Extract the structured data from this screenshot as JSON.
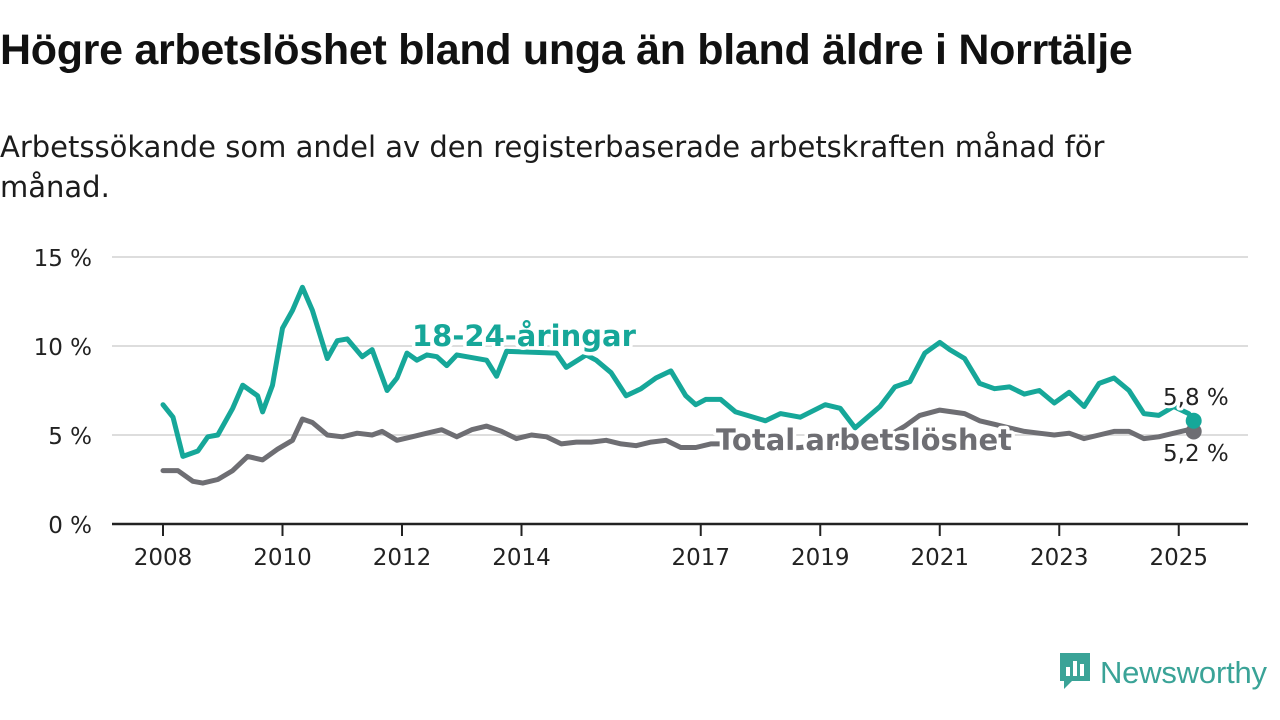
{
  "title": "Högre arbetslöshet bland unga än bland äldre i Norrtälje",
  "subtitle": "Arbetssökande som andel av den registerbaserade arbetskraften månad för månad.",
  "brand": {
    "name": "Newsworthy",
    "icon": "newsworthy-logo-icon"
  },
  "colors": {
    "youth": "#16a799",
    "total": "#6e6e73",
    "grid": "#dddddd",
    "axis": "#222222"
  },
  "chart_data": {
    "type": "line",
    "title": "Högre arbetslöshet bland unga än bland äldre i Norrtälje",
    "subtitle": "Arbetssökande som andel av den registerbaserade arbetskraften månad för månad.",
    "xlabel": "",
    "ylabel": "",
    "x_ticks": [
      "2008",
      "2010",
      "2012",
      "2014",
      "2017",
      "2019",
      "2021",
      "2023",
      "2025"
    ],
    "y_ticks": [
      "0 %",
      "5 %",
      "10 %",
      "15 %"
    ],
    "xlim": [
      "2008-01",
      "2026-01"
    ],
    "ylim": [
      0,
      15
    ],
    "grid": true,
    "series": [
      {
        "name": "18-24-åringar",
        "label": "18-24-åringar",
        "end_label": "5,8 %",
        "points": [
          [
            "2008-01",
            6.7
          ],
          [
            "2008-03",
            6.0
          ],
          [
            "2008-05",
            3.8
          ],
          [
            "2008-08",
            4.1
          ],
          [
            "2008-10",
            4.9
          ],
          [
            "2008-12",
            5.0
          ],
          [
            "2009-03",
            6.5
          ],
          [
            "2009-05",
            7.8
          ],
          [
            "2009-08",
            7.2
          ],
          [
            "2009-09",
            6.3
          ],
          [
            "2009-11",
            7.8
          ],
          [
            "2010-01",
            11.0
          ],
          [
            "2010-03",
            12.0
          ],
          [
            "2010-05",
            13.3
          ],
          [
            "2010-07",
            12.0
          ],
          [
            "2010-10",
            9.3
          ],
          [
            "2010-12",
            10.3
          ],
          [
            "2011-02",
            10.4
          ],
          [
            "2011-05",
            9.4
          ],
          [
            "2011-07",
            9.8
          ],
          [
            "2011-10",
            7.5
          ],
          [
            "2011-12",
            8.2
          ],
          [
            "2012-02",
            9.6
          ],
          [
            "2012-04",
            9.2
          ],
          [
            "2012-06",
            9.5
          ],
          [
            "2012-08",
            9.4
          ],
          [
            "2012-10",
            8.9
          ],
          [
            "2012-12",
            9.5
          ],
          [
            "2013-06",
            9.2
          ],
          [
            "2013-08",
            8.3
          ],
          [
            "2013-10",
            9.7
          ],
          [
            "2014-08",
            9.6
          ],
          [
            "2014-10",
            8.8
          ],
          [
            "2015-02",
            9.5
          ],
          [
            "2015-04",
            9.2
          ],
          [
            "2015-07",
            8.5
          ],
          [
            "2015-10",
            7.2
          ],
          [
            "2016-01",
            7.6
          ],
          [
            "2016-04",
            8.2
          ],
          [
            "2016-07",
            8.6
          ],
          [
            "2016-10",
            7.2
          ],
          [
            "2016-12",
            6.7
          ],
          [
            "2017-02",
            7.0
          ],
          [
            "2017-05",
            7.0
          ],
          [
            "2017-08",
            6.3
          ],
          [
            "2018-02",
            5.8
          ],
          [
            "2018-05",
            6.2
          ],
          [
            "2018-09",
            6.0
          ],
          [
            "2019-02",
            6.7
          ],
          [
            "2019-05",
            6.5
          ],
          [
            "2019-08",
            5.4
          ],
          [
            "2020-01",
            6.6
          ],
          [
            "2020-04",
            7.7
          ],
          [
            "2020-07",
            8.0
          ],
          [
            "2020-10",
            9.6
          ],
          [
            "2021-01",
            10.2
          ],
          [
            "2021-03",
            9.8
          ],
          [
            "2021-06",
            9.3
          ],
          [
            "2021-09",
            7.9
          ],
          [
            "2021-12",
            7.6
          ],
          [
            "2022-03",
            7.7
          ],
          [
            "2022-06",
            7.3
          ],
          [
            "2022-09",
            7.5
          ],
          [
            "2022-12",
            6.8
          ],
          [
            "2023-03",
            7.4
          ],
          [
            "2023-06",
            6.6
          ],
          [
            "2023-09",
            7.9
          ],
          [
            "2023-12",
            8.2
          ],
          [
            "2024-03",
            7.5
          ],
          [
            "2024-06",
            6.2
          ],
          [
            "2024-09",
            6.1
          ],
          [
            "2024-12",
            6.6
          ],
          [
            "2025-03",
            6.2
          ],
          [
            "2025-04",
            5.8
          ]
        ]
      },
      {
        "name": "Total arbetslöshet",
        "label": "Total arbetslöshet",
        "end_label": "5,2 %",
        "points": [
          [
            "2008-01",
            3.0
          ],
          [
            "2008-04",
            3.0
          ],
          [
            "2008-07",
            2.4
          ],
          [
            "2008-09",
            2.3
          ],
          [
            "2008-12",
            2.5
          ],
          [
            "2009-03",
            3.0
          ],
          [
            "2009-06",
            3.8
          ],
          [
            "2009-09",
            3.6
          ],
          [
            "2009-12",
            4.2
          ],
          [
            "2010-03",
            4.7
          ],
          [
            "2010-05",
            5.9
          ],
          [
            "2010-07",
            5.7
          ],
          [
            "2010-10",
            5.0
          ],
          [
            "2011-01",
            4.9
          ],
          [
            "2011-04",
            5.1
          ],
          [
            "2011-07",
            5.0
          ],
          [
            "2011-09",
            5.2
          ],
          [
            "2011-12",
            4.7
          ],
          [
            "2012-03",
            4.9
          ],
          [
            "2012-06",
            5.1
          ],
          [
            "2012-09",
            5.3
          ],
          [
            "2012-12",
            4.9
          ],
          [
            "2013-03",
            5.3
          ],
          [
            "2013-06",
            5.5
          ],
          [
            "2013-09",
            5.2
          ],
          [
            "2013-12",
            4.8
          ],
          [
            "2014-03",
            5.0
          ],
          [
            "2014-06",
            4.9
          ],
          [
            "2014-09",
            4.5
          ],
          [
            "2014-12",
            4.6
          ],
          [
            "2015-03",
            4.6
          ],
          [
            "2015-06",
            4.7
          ],
          [
            "2015-09",
            4.5
          ],
          [
            "2015-12",
            4.4
          ],
          [
            "2016-03",
            4.6
          ],
          [
            "2016-06",
            4.7
          ],
          [
            "2016-09",
            4.3
          ],
          [
            "2016-12",
            4.3
          ],
          [
            "2017-03",
            4.5
          ],
          [
            "2017-06",
            4.5
          ],
          [
            "2017-09",
            4.4
          ],
          [
            "2018-03",
            4.2
          ],
          [
            "2018-09",
            4.3
          ],
          [
            "2019-03",
            4.5
          ],
          [
            "2019-09",
            4.6
          ],
          [
            "2020-03",
            5.0
          ],
          [
            "2020-06",
            5.5
          ],
          [
            "2020-09",
            6.1
          ],
          [
            "2021-01",
            6.4
          ],
          [
            "2021-06",
            6.2
          ],
          [
            "2021-09",
            5.8
          ],
          [
            "2021-12",
            5.6
          ],
          [
            "2022-03",
            5.4
          ],
          [
            "2022-06",
            5.2
          ],
          [
            "2022-09",
            5.1
          ],
          [
            "2022-12",
            5.0
          ],
          [
            "2023-03",
            5.1
          ],
          [
            "2023-06",
            4.8
          ],
          [
            "2023-09",
            5.0
          ],
          [
            "2023-12",
            5.2
          ],
          [
            "2024-03",
            5.2
          ],
          [
            "2024-06",
            4.8
          ],
          [
            "2024-09",
            4.9
          ],
          [
            "2024-12",
            5.1
          ],
          [
            "2025-03",
            5.3
          ],
          [
            "2025-04",
            5.2
          ]
        ]
      }
    ]
  }
}
